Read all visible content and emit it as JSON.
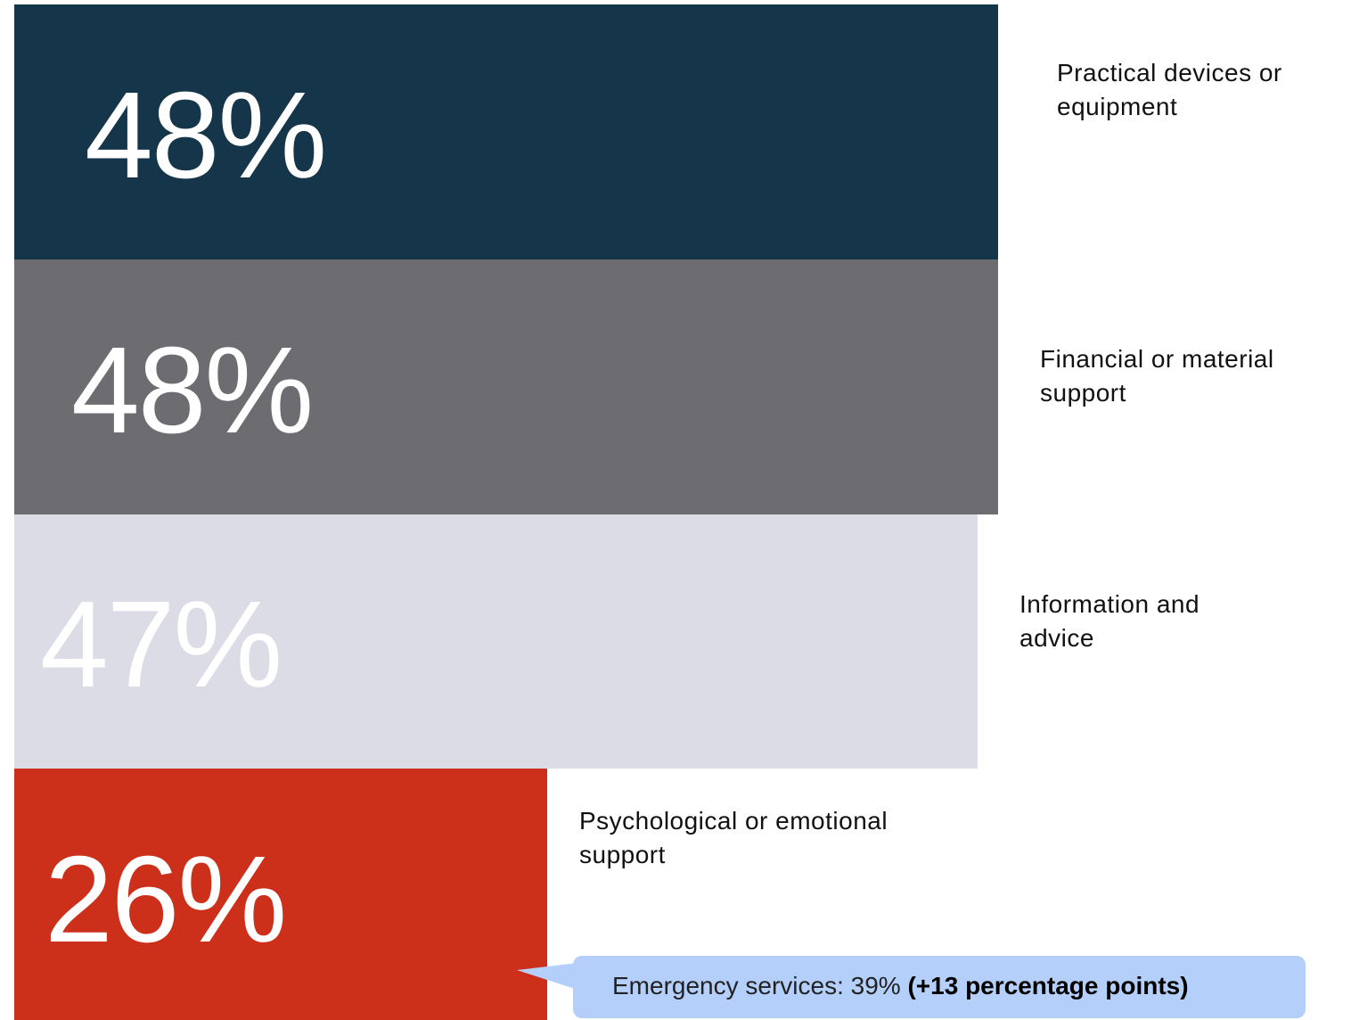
{
  "chart_data": {
    "type": "bar",
    "orientation": "horizontal",
    "categories": [
      "Practical devices or equipment",
      "Financial or material support",
      "Information and advice",
      "Psychological or emotional support"
    ],
    "values": [
      48,
      48,
      47,
      26
    ],
    "value_labels": [
      "48%",
      "48%",
      "47%",
      "26%"
    ],
    "colors": [
      "#14354a",
      "#6d6c71",
      "#dbdce5",
      "#cc2f1a"
    ],
    "annotation": {
      "text": "Emergency services: 39%",
      "emphasis": "(+13 percentage points)"
    }
  }
}
